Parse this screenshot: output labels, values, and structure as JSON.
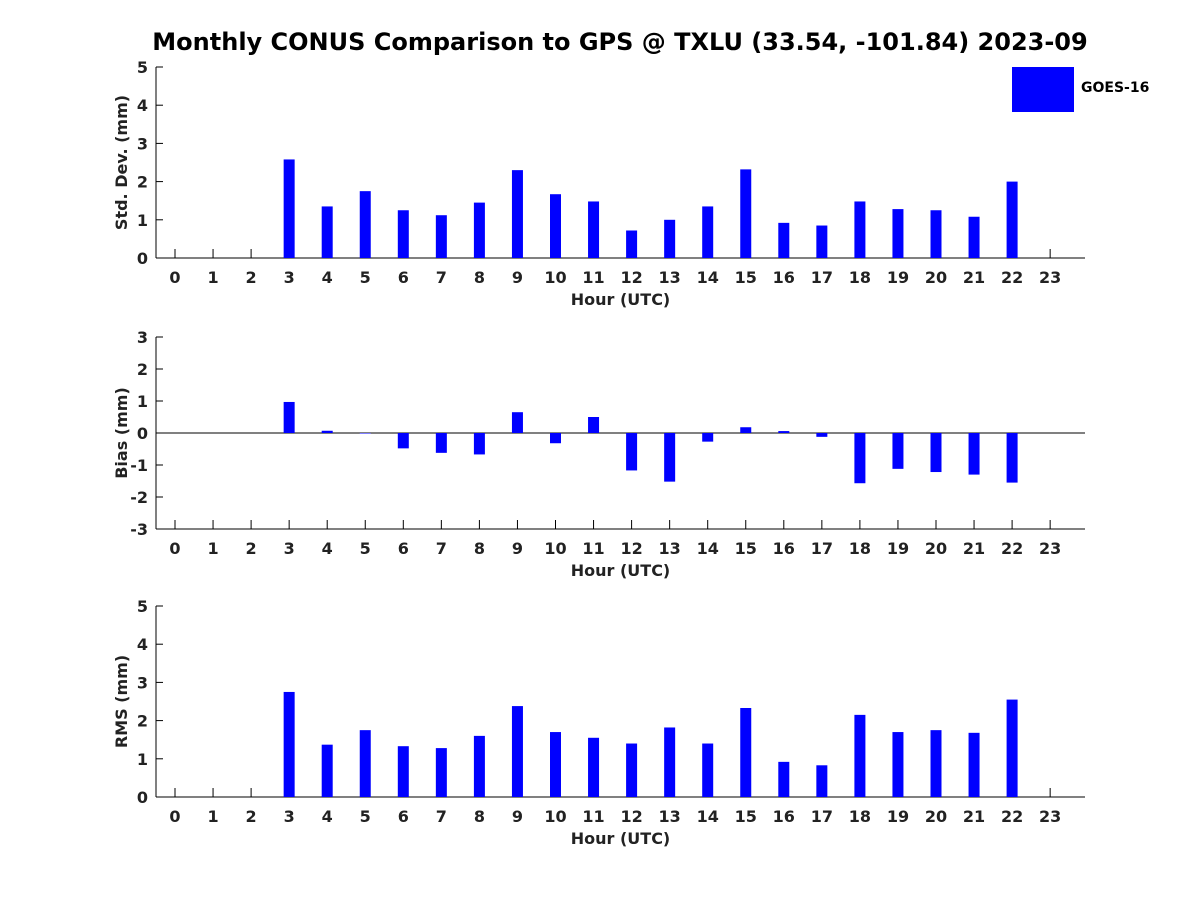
{
  "figure": {
    "title": "Monthly CONUS Comparison to GPS @ TXLU (33.54, -101.84) 2023-09",
    "bar_color": "#0000ff",
    "legend": {
      "label": "GOES-16",
      "placement": "top-right"
    }
  },
  "chart_data": [
    {
      "type": "bar",
      "xlabel": "Hour (UTC)",
      "ylabel": "Std. Dev. (mm)",
      "ylim": [
        0,
        5
      ],
      "yticks": [
        "0",
        "1",
        "2",
        "3",
        "4",
        "5"
      ],
      "categories": [
        "0",
        "1",
        "2",
        "3",
        "4",
        "5",
        "6",
        "7",
        "8",
        "9",
        "10",
        "11",
        "12",
        "13",
        "14",
        "15",
        "16",
        "17",
        "18",
        "19",
        "20",
        "21",
        "22",
        "23"
      ],
      "series": [
        {
          "name": "GOES-16",
          "values": [
            null,
            null,
            null,
            2.58,
            1.35,
            1.75,
            1.25,
            1.12,
            1.45,
            2.3,
            1.67,
            1.48,
            0.72,
            1.0,
            1.35,
            2.32,
            0.92,
            0.85,
            1.48,
            1.28,
            1.25,
            1.08,
            2.0,
            null
          ]
        }
      ],
      "grid": false,
      "zero_line": false
    },
    {
      "type": "bar",
      "xlabel": "Hour (UTC)",
      "ylabel": "Bias (mm)",
      "ylim": [
        -3,
        3
      ],
      "yticks": [
        "-3",
        "-2",
        "-1",
        "0",
        "1",
        "2",
        "3"
      ],
      "categories": [
        "0",
        "1",
        "2",
        "3",
        "4",
        "5",
        "6",
        "7",
        "8",
        "9",
        "10",
        "11",
        "12",
        "13",
        "14",
        "15",
        "16",
        "17",
        "18",
        "19",
        "20",
        "21",
        "22",
        "23"
      ],
      "series": [
        {
          "name": "GOES-16",
          "values": [
            null,
            null,
            null,
            0.97,
            0.07,
            0.0,
            -0.48,
            -0.62,
            -0.67,
            0.65,
            -0.32,
            0.5,
            -1.17,
            -1.52,
            -0.27,
            0.18,
            0.06,
            -0.12,
            -1.57,
            -1.12,
            -1.22,
            -1.3,
            -1.55,
            null
          ]
        }
      ],
      "grid": false,
      "zero_line": true
    },
    {
      "type": "bar",
      "xlabel": "Hour (UTC)",
      "ylabel": "RMS (mm)",
      "ylim": [
        0,
        5
      ],
      "yticks": [
        "0",
        "1",
        "2",
        "3",
        "4",
        "5"
      ],
      "categories": [
        "0",
        "1",
        "2",
        "3",
        "4",
        "5",
        "6",
        "7",
        "8",
        "9",
        "10",
        "11",
        "12",
        "13",
        "14",
        "15",
        "16",
        "17",
        "18",
        "19",
        "20",
        "21",
        "22",
        "23"
      ],
      "series": [
        {
          "name": "GOES-16",
          "values": [
            null,
            null,
            null,
            2.75,
            1.37,
            1.75,
            1.33,
            1.28,
            1.6,
            2.38,
            1.7,
            1.55,
            1.4,
            1.82,
            1.4,
            2.33,
            0.92,
            0.83,
            2.15,
            1.7,
            1.75,
            1.68,
            2.55,
            null
          ]
        }
      ],
      "grid": false,
      "zero_line": false
    }
  ]
}
